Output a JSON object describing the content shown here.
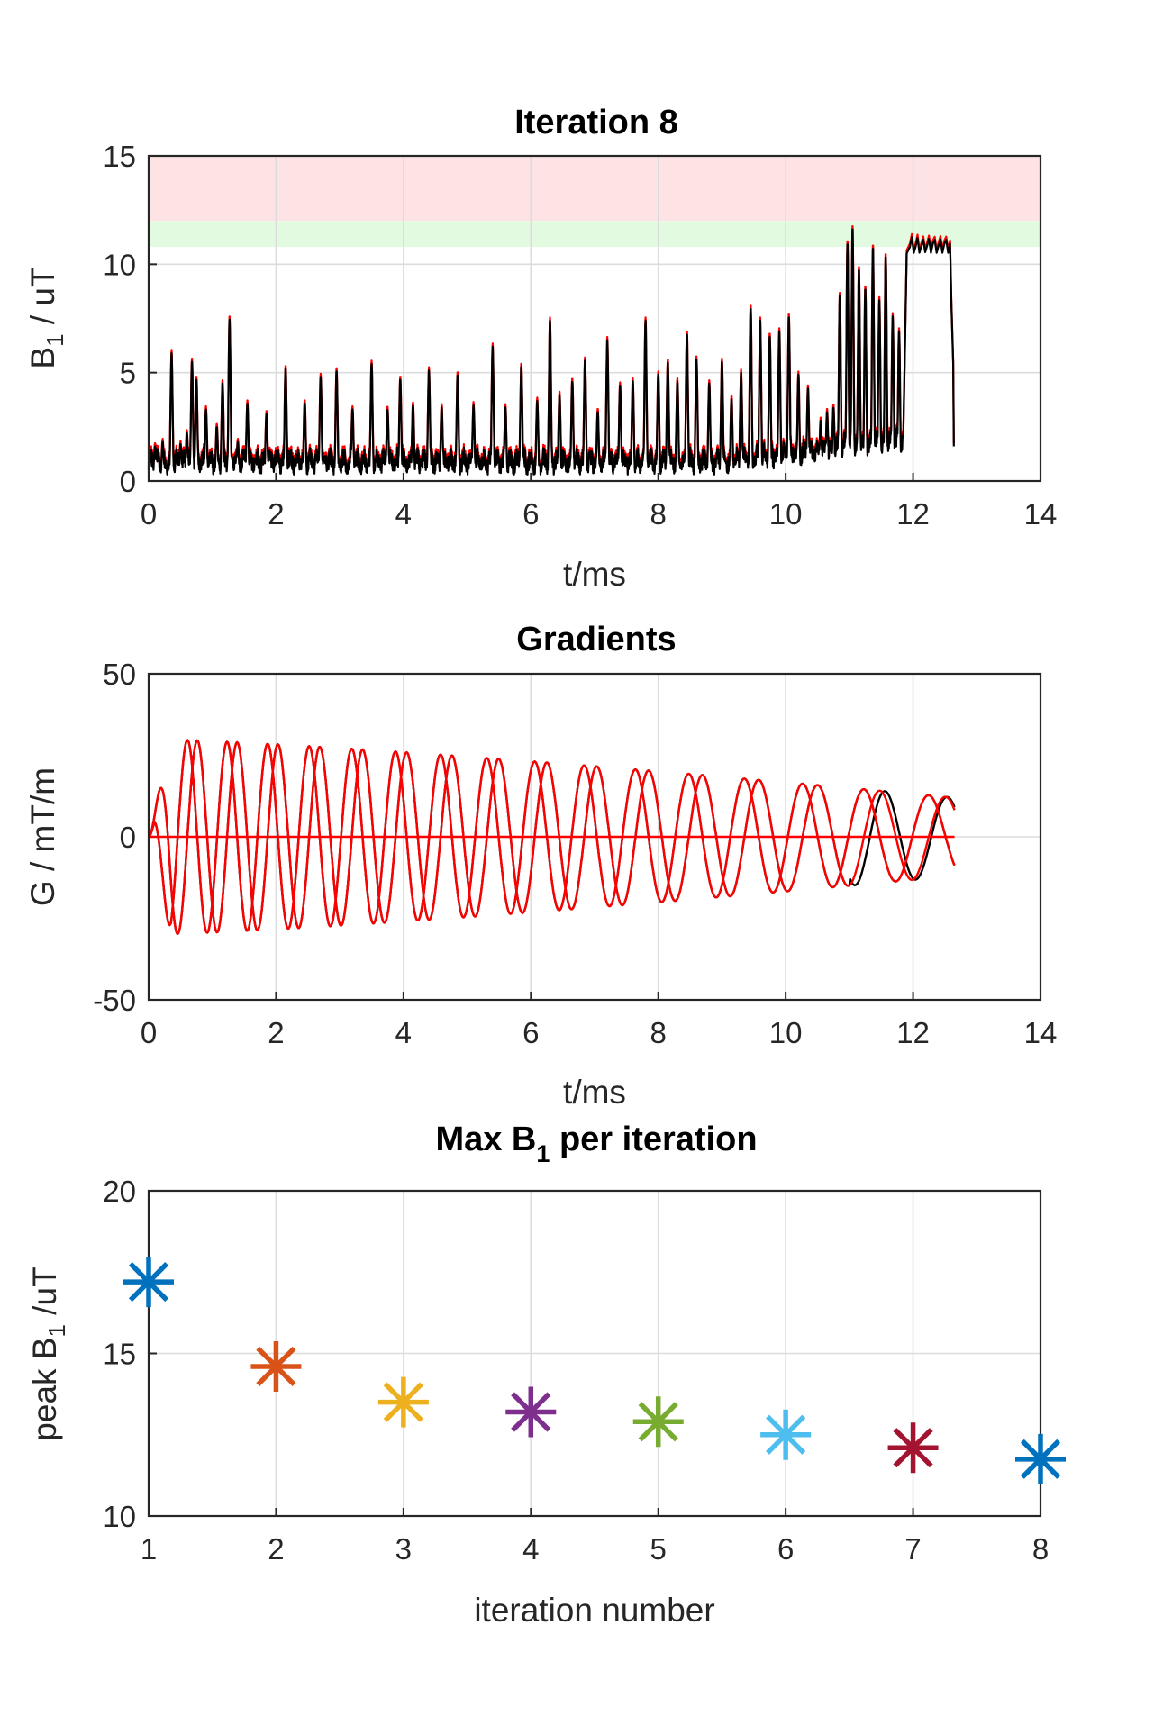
{
  "chart_data": [
    {
      "type": "line",
      "title": "Iteration 8",
      "xlabel": "t/ms",
      "ylabel_main": "B",
      "ylabel_sub": "1",
      "ylabel_rest": " / uT",
      "xlim": [
        0,
        14
      ],
      "ylim": [
        0,
        15
      ],
      "xticks": [
        "0",
        "2",
        "4",
        "6",
        "8",
        "10",
        "12",
        "14"
      ],
      "yticks": [
        "0",
        "5",
        "10",
        "15"
      ],
      "grid": true,
      "bands": [
        {
          "from": 12,
          "to": 15,
          "color": "#fde3e3"
        },
        {
          "from": 10.8,
          "to": 12,
          "color": "#e2fbe0"
        }
      ],
      "series": [
        {
          "color": "#ff0000"
        },
        {
          "color": "#000000"
        }
      ],
      "pulse_peaks": [
        {
          "t": 0.1,
          "b": 1.6
        },
        {
          "t": 0.22,
          "b": 1.8
        },
        {
          "t": 0.36,
          "b": 5.9
        },
        {
          "t": 0.5,
          "b": 1.7
        },
        {
          "t": 0.6,
          "b": 2.2
        },
        {
          "t": 0.68,
          "b": 5.5
        },
        {
          "t": 0.75,
          "b": 4.7
        },
        {
          "t": 0.9,
          "b": 3.3
        },
        {
          "t": 1.07,
          "b": 2.5
        },
        {
          "t": 1.16,
          "b": 4.5
        },
        {
          "t": 1.27,
          "b": 7.5
        },
        {
          "t": 1.4,
          "b": 1.8
        },
        {
          "t": 1.55,
          "b": 3.6
        },
        {
          "t": 1.85,
          "b": 3.1
        },
        {
          "t": 2.15,
          "b": 5.2
        },
        {
          "t": 2.45,
          "b": 3.6
        },
        {
          "t": 2.7,
          "b": 4.8
        },
        {
          "t": 2.95,
          "b": 5.1
        },
        {
          "t": 3.2,
          "b": 3.3
        },
        {
          "t": 3.5,
          "b": 5.4
        },
        {
          "t": 3.75,
          "b": 3.3
        },
        {
          "t": 3.95,
          "b": 4.7
        },
        {
          "t": 4.15,
          "b": 3.5
        },
        {
          "t": 4.4,
          "b": 5.1
        },
        {
          "t": 4.6,
          "b": 3.4
        },
        {
          "t": 4.85,
          "b": 4.9
        },
        {
          "t": 5.1,
          "b": 3.5
        },
        {
          "t": 5.4,
          "b": 6.2
        },
        {
          "t": 5.6,
          "b": 3.4
        },
        {
          "t": 5.85,
          "b": 5.3
        },
        {
          "t": 6.1,
          "b": 3.7
        },
        {
          "t": 6.3,
          "b": 7.4
        },
        {
          "t": 6.45,
          "b": 4.0
        },
        {
          "t": 6.65,
          "b": 4.6
        },
        {
          "t": 6.85,
          "b": 5.6
        },
        {
          "t": 7.05,
          "b": 3.2
        },
        {
          "t": 7.2,
          "b": 6.5
        },
        {
          "t": 7.4,
          "b": 4.4
        },
        {
          "t": 7.6,
          "b": 4.6
        },
        {
          "t": 7.8,
          "b": 7.4
        },
        {
          "t": 8.0,
          "b": 4.9
        },
        {
          "t": 8.15,
          "b": 5.5
        },
        {
          "t": 8.3,
          "b": 4.6
        },
        {
          "t": 8.45,
          "b": 6.8
        },
        {
          "t": 8.6,
          "b": 5.6
        },
        {
          "t": 8.8,
          "b": 4.5
        },
        {
          "t": 9.0,
          "b": 5.5
        },
        {
          "t": 9.15,
          "b": 3.8
        },
        {
          "t": 9.3,
          "b": 5.0
        },
        {
          "t": 9.45,
          "b": 8.0
        },
        {
          "t": 9.6,
          "b": 7.4
        },
        {
          "t": 9.75,
          "b": 6.7
        },
        {
          "t": 9.9,
          "b": 6.9
        },
        {
          "t": 10.05,
          "b": 7.6
        },
        {
          "t": 10.2,
          "b": 4.9
        },
        {
          "t": 10.35,
          "b": 4.3
        },
        {
          "t": 10.55,
          "b": 2.8
        },
        {
          "t": 10.65,
          "b": 3.2
        },
        {
          "t": 10.75,
          "b": 3.4
        },
        {
          "t": 10.85,
          "b": 8.6
        },
        {
          "t": 10.97,
          "b": 11.0
        },
        {
          "t": 11.05,
          "b": 11.7
        },
        {
          "t": 11.15,
          "b": 9.8
        },
        {
          "t": 11.25,
          "b": 8.9
        },
        {
          "t": 11.37,
          "b": 10.8
        },
        {
          "t": 11.47,
          "b": 8.4
        },
        {
          "t": 11.57,
          "b": 10.4
        },
        {
          "t": 11.68,
          "b": 7.6
        },
        {
          "t": 11.78,
          "b": 6.9
        }
      ],
      "plateau": {
        "start": 11.85,
        "top": 10.8,
        "end": 12.58,
        "final": 1.6
      },
      "baseline": 0.9
    },
    {
      "type": "line",
      "title": "Gradients",
      "xlabel": "t/ms",
      "ylabel": "G / mT/m",
      "xlim": [
        0,
        14
      ],
      "ylim": [
        -50,
        50
      ],
      "xticks": [
        "0",
        "2",
        "4",
        "6",
        "8",
        "10",
        "12",
        "14"
      ],
      "yticks": [
        "-50",
        "0",
        "50"
      ],
      "grid": true,
      "duration": 12.65,
      "amp_start": 30,
      "amp_end": 12,
      "cycles": 21,
      "series": [
        {
          "color": "#000000",
          "phase": 0
        },
        {
          "color": "#000000",
          "phase": 1.5708
        },
        {
          "color": "#ff0000",
          "phase": 0
        },
        {
          "color": "#ff0000",
          "phase": 1.5708
        },
        {
          "color": "#ff0000",
          "phase": null
        }
      ]
    },
    {
      "type": "scatter",
      "title_main": "Max B",
      "title_sub": "1",
      "title_rest": " per iteration",
      "xlabel": "iteration number",
      "ylabel_main": "peak B",
      "ylabel_sub": "1",
      "ylabel_rest": " /uT",
      "xlim": [
        1,
        8
      ],
      "ylim": [
        10,
        20
      ],
      "xticks": [
        "1",
        "2",
        "3",
        "4",
        "5",
        "6",
        "7",
        "8"
      ],
      "yticks": [
        "10",
        "15",
        "20"
      ],
      "grid": true,
      "points": [
        {
          "x": 1,
          "y": 17.2,
          "color": "#0072bd"
        },
        {
          "x": 2,
          "y": 14.6,
          "color": "#d95319"
        },
        {
          "x": 3,
          "y": 13.5,
          "color": "#edb120"
        },
        {
          "x": 4,
          "y": 13.2,
          "color": "#7e2f8e"
        },
        {
          "x": 5,
          "y": 12.9,
          "color": "#77ac30"
        },
        {
          "x": 6,
          "y": 12.5,
          "color": "#4dbeee"
        },
        {
          "x": 7,
          "y": 12.1,
          "color": "#a2142f"
        },
        {
          "x": 8,
          "y": 11.75,
          "color": "#0072bd"
        }
      ]
    }
  ]
}
